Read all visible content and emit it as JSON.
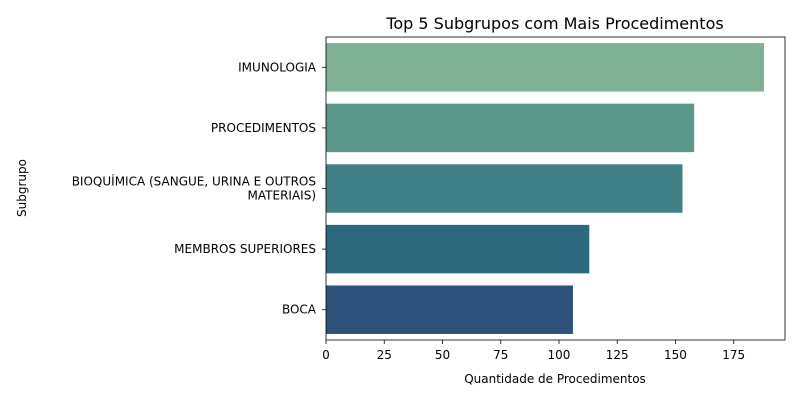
{
  "chart_data": {
    "type": "bar",
    "orientation": "horizontal",
    "title": "Top 5 Subgrupos com Mais Procedimentos",
    "xlabel": "Quantidade de Procedimentos",
    "ylabel": "Subgrupo",
    "xlim": [
      0,
      197
    ],
    "xticks": [
      0,
      25,
      50,
      75,
      100,
      125,
      150,
      175
    ],
    "grid": false,
    "legend": "none",
    "categories": [
      [
        "IMUNOLOGIA"
      ],
      [
        "PROCEDIMENTOS"
      ],
      [
        "BIOQUÍMICA (SANGUE, URINA E OUTROS",
        "MATERIAIS)"
      ],
      [
        "MEMBROS SUPERIORES"
      ],
      [
        "BOCA"
      ]
    ],
    "values": [
      188,
      158,
      153,
      113,
      106
    ],
    "colors": [
      "#7fb195",
      "#5a978b",
      "#408187",
      "#2c687e",
      "#2e527b"
    ]
  }
}
